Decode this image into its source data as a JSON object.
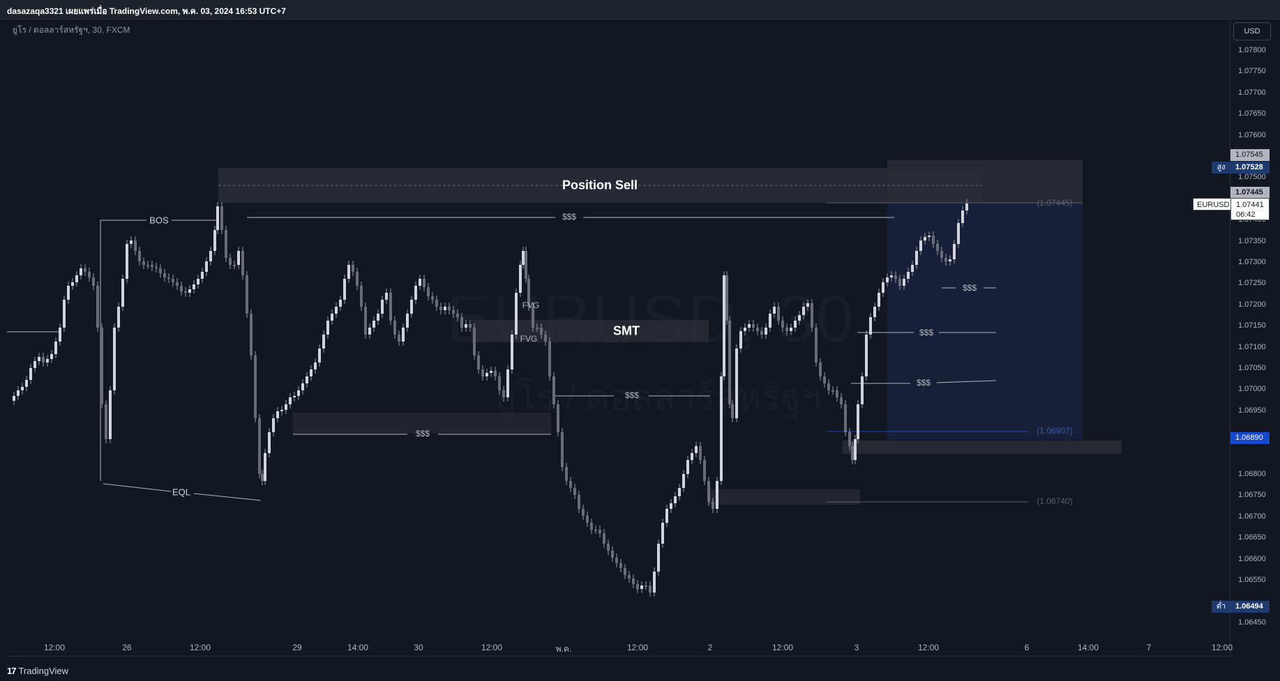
{
  "header": {
    "author_line": "dasazaqa3321 เผยแพร่เมื่อ TradingView.com, พ.ค. 03, 2024 16:53 UTC+7"
  },
  "symbol": {
    "legend": "ยูโร / ดอลลาร์สหรัฐฯ, 30, FXCM",
    "watermark": "EURUSD, 30",
    "watermark_sub": "ยูโร / ดอลลาร์สหรัฐฯ"
  },
  "price_scale": {
    "currency": "USD",
    "ticks": [
      "1.07800",
      "1.07750",
      "1.07700",
      "1.07650",
      "1.07600",
      "1.07500",
      "1.07400",
      "1.07350",
      "1.07300",
      "1.07250",
      "1.07200",
      "1.07150",
      "1.07100",
      "1.07050",
      "1.07000",
      "1.06950",
      "1.06800",
      "1.06750",
      "1.06700",
      "1.06650",
      "1.06600",
      "1.06550",
      "1.06450"
    ],
    "tags": {
      "high_box": "1.07545",
      "high_label": "สูง",
      "high_value": "1.07528",
      "level_gray": "1.07445",
      "symbol": "EURUSD",
      "last_price": "1.07441",
      "countdown": "06:42",
      "blue_level": "1.06890",
      "low_label": "ต่ำ",
      "low_value": "1.06494"
    }
  },
  "time_axis": {
    "labels": [
      "12:00",
      "26",
      "12:00",
      "29",
      "14:00",
      "30",
      "12:00",
      "พ.ค.",
      "12:00",
      "2",
      "12:00",
      "3",
      "12:00",
      "6",
      "14:00",
      "7",
      "12:00"
    ]
  },
  "annotations": {
    "position_sell": "Position Sell",
    "smt": "SMT",
    "bos": "BOS",
    "eql": "EQL",
    "liquidity": "$$$",
    "fvg": "FVG",
    "level_07445": "(1.07445)",
    "level_06907": "(1.06907)",
    "level_06740": "(1.06740)"
  },
  "colors": {
    "background": "#131722",
    "candle_up": "#b2b5be",
    "candle_down": "#b2b5be",
    "short_zone": "#1a2540",
    "blue_tag": "#1848cc"
  },
  "footer": {
    "brand": "TradingView"
  }
}
